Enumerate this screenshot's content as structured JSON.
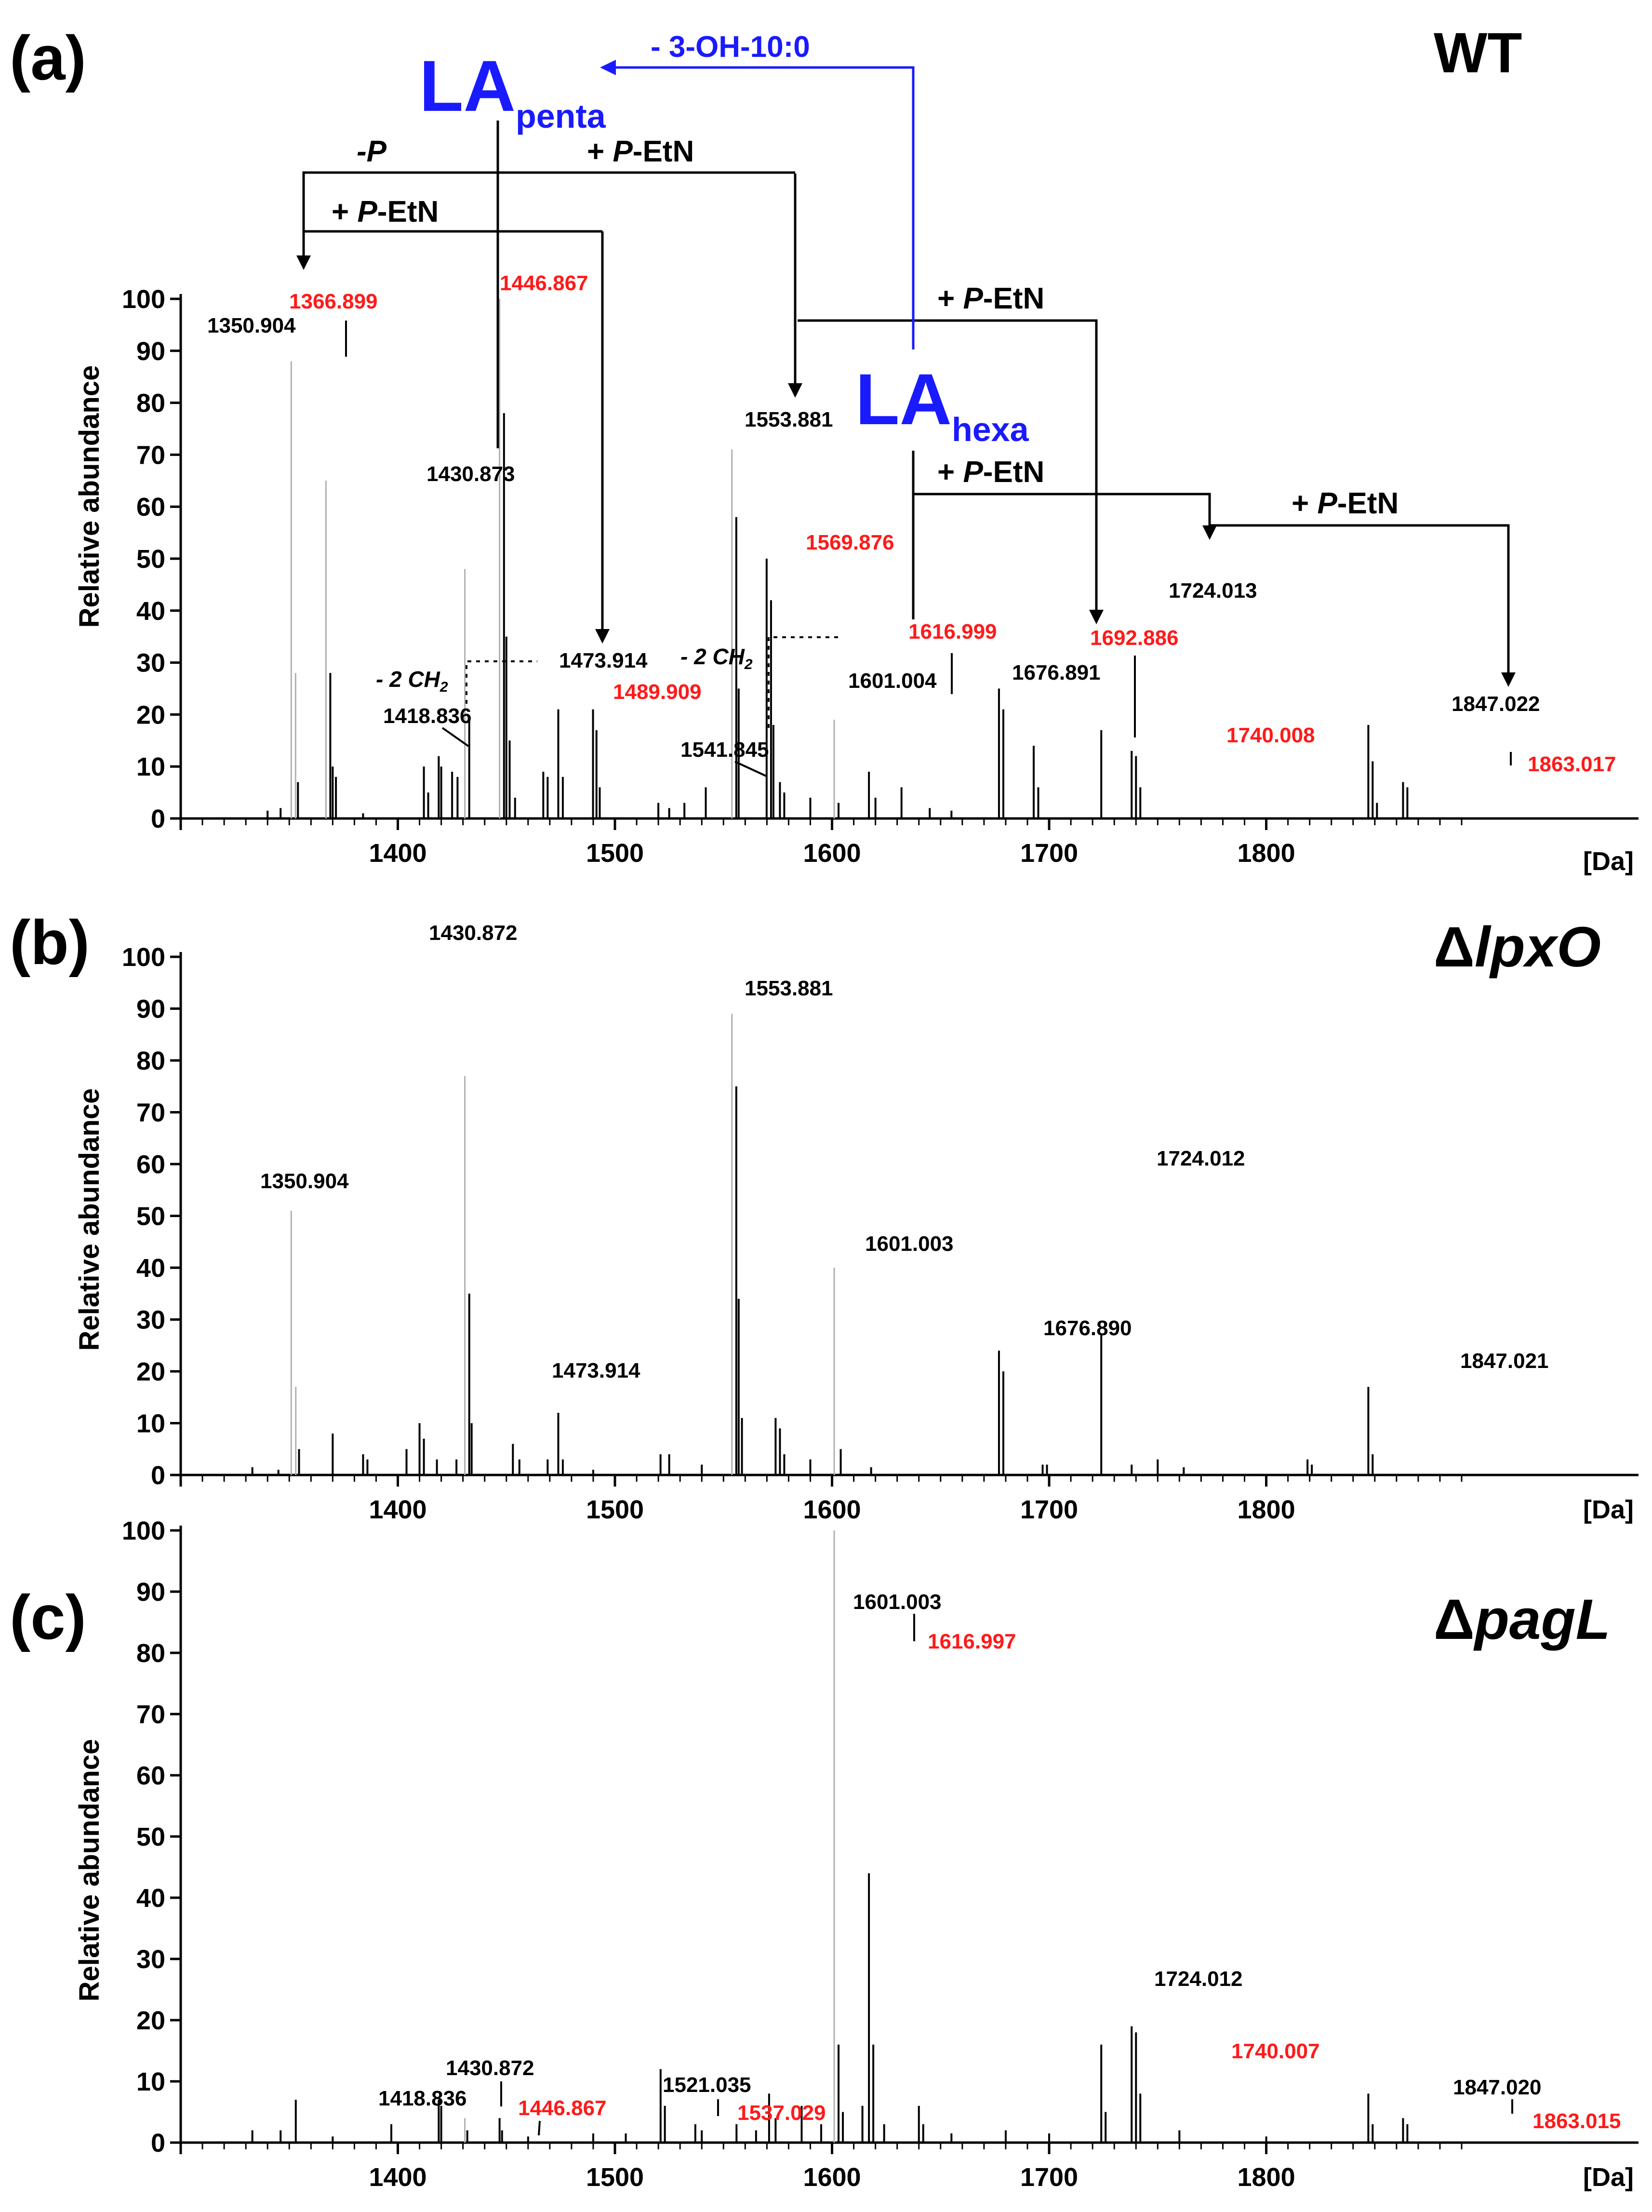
{
  "colors": {
    "black": "#000000",
    "red": "#ff1a1a",
    "blue": "#1a1aff",
    "gray": "#b0b0b0"
  },
  "chart_data": [
    {
      "type": "bar",
      "panel": "(a)",
      "title": "WT",
      "xlabel": "",
      "x_unit": "[Da]",
      "ylabel": "Relative abundance",
      "xlim": [
        1300,
        1890
      ],
      "ylim": [
        0,
        100
      ],
      "x_ticks": [
        "1400",
        "1500",
        "1600",
        "1700",
        "1800"
      ],
      "y_ticks": [
        "0",
        "10",
        "20",
        "30",
        "40",
        "50",
        "60",
        "70",
        "80",
        "90",
        "100"
      ],
      "peaks": [
        {
          "mz": 1350.904,
          "value": 88,
          "gray": true
        },
        {
          "mz": 1352.9,
          "value": 28,
          "gray": true
        },
        {
          "mz": 1354.0,
          "value": 7
        },
        {
          "mz": 1366.899,
          "value": 65,
          "gray": true
        },
        {
          "mz": 1368.9,
          "value": 28
        },
        {
          "mz": 1370.0,
          "value": 10
        },
        {
          "mz": 1371.5,
          "value": 8
        },
        {
          "mz": 1340.0,
          "value": 1.5
        },
        {
          "mz": 1346.0,
          "value": 2
        },
        {
          "mz": 1384.0,
          "value": 1
        },
        {
          "mz": 1412.0,
          "value": 10
        },
        {
          "mz": 1414.0,
          "value": 5
        },
        {
          "mz": 1418.836,
          "value": 12
        },
        {
          "mz": 1420.0,
          "value": 10
        },
        {
          "mz": 1425.0,
          "value": 9
        },
        {
          "mz": 1427.5,
          "value": 8
        },
        {
          "mz": 1430.873,
          "value": 48,
          "gray": true
        },
        {
          "mz": 1432.9,
          "value": 19
        },
        {
          "mz": 1446.867,
          "value": 100,
          "gray": true
        },
        {
          "mz": 1448.9,
          "value": 78
        },
        {
          "mz": 1450.0,
          "value": 35
        },
        {
          "mz": 1451.5,
          "value": 15
        },
        {
          "mz": 1454.0,
          "value": 4
        },
        {
          "mz": 1467.0,
          "value": 9
        },
        {
          "mz": 1469.0,
          "value": 8
        },
        {
          "mz": 1473.914,
          "value": 21
        },
        {
          "mz": 1476.0,
          "value": 8
        },
        {
          "mz": 1489.909,
          "value": 21
        },
        {
          "mz": 1491.5,
          "value": 17
        },
        {
          "mz": 1493.0,
          "value": 6
        },
        {
          "mz": 1520.0,
          "value": 3
        },
        {
          "mz": 1525.0,
          "value": 2
        },
        {
          "mz": 1532.0,
          "value": 3
        },
        {
          "mz": 1541.845,
          "value": 6
        },
        {
          "mz": 1553.881,
          "value": 71,
          "gray": true
        },
        {
          "mz": 1555.9,
          "value": 58
        },
        {
          "mz": 1557.0,
          "value": 25
        },
        {
          "mz": 1569.876,
          "value": 50
        },
        {
          "mz": 1571.9,
          "value": 42
        },
        {
          "mz": 1573.0,
          "value": 18
        },
        {
          "mz": 1576.0,
          "value": 7
        },
        {
          "mz": 1578.0,
          "value": 5
        },
        {
          "mz": 1590.0,
          "value": 4
        },
        {
          "mz": 1601.004,
          "value": 19,
          "gray": true
        },
        {
          "mz": 1603.0,
          "value": 3
        },
        {
          "mz": 1616.999,
          "value": 9
        },
        {
          "mz": 1620.0,
          "value": 4
        },
        {
          "mz": 1632.0,
          "value": 6
        },
        {
          "mz": 1645.0,
          "value": 2
        },
        {
          "mz": 1655.0,
          "value": 1.5
        },
        {
          "mz": 1676.891,
          "value": 25
        },
        {
          "mz": 1678.9,
          "value": 21
        },
        {
          "mz": 1692.886,
          "value": 14
        },
        {
          "mz": 1695.0,
          "value": 6
        },
        {
          "mz": 1724.013,
          "value": 17
        },
        {
          "mz": 1738.0,
          "value": 13
        },
        {
          "mz": 1740.008,
          "value": 12
        },
        {
          "mz": 1742.0,
          "value": 6
        },
        {
          "mz": 1847.022,
          "value": 18
        },
        {
          "mz": 1849.0,
          "value": 11
        },
        {
          "mz": 1851.0,
          "value": 3
        },
        {
          "mz": 1863.017,
          "value": 7
        },
        {
          "mz": 1865.0,
          "value": 6
        }
      ],
      "labels": [
        {
          "text": "1350.904",
          "red": false
        },
        {
          "text": "1366.899",
          "red": true
        },
        {
          "text": "1446.867",
          "red": true
        },
        {
          "text": "1430.873",
          "red": false
        },
        {
          "text": "1418.836",
          "red": false
        },
        {
          "text": "1473.914",
          "red": false
        },
        {
          "text": "1489.909",
          "red": true
        },
        {
          "text": "1541.845",
          "red": false
        },
        {
          "text": "1553.881",
          "red": false
        },
        {
          "text": "1569.876",
          "red": true
        },
        {
          "text": "1601.004",
          "red": false
        },
        {
          "text": "1616.999",
          "red": true
        },
        {
          "text": "1676.891",
          "red": false
        },
        {
          "text": "1692.886",
          "red": true
        },
        {
          "text": "1724.013",
          "red": false
        },
        {
          "text": "1740.008",
          "red": true
        },
        {
          "text": "1847.022",
          "red": false
        },
        {
          "text": "1863.017",
          "red": true
        }
      ],
      "annotations": {
        "la_penta": "LA",
        "la_penta_sub": "penta",
        "la_hexa": "LA",
        "la_hexa_sub": "hexa",
        "loss_acyl": "- 3-OH-10:0",
        "minus_p": "-P",
        "plus_petn_prefix": "+ ",
        "plus_petn_p": "P",
        "plus_petn_suffix": "-EtN",
        "minus_2ch2_prefix": "- 2 CH",
        "minus_2ch2_sub": "2"
      }
    },
    {
      "type": "bar",
      "panel": "(b)",
      "title_prefix": "Δ",
      "title": "lpxO",
      "x_unit": "[Da]",
      "ylabel": "Relative abundance",
      "xlim": [
        1300,
        1890
      ],
      "ylim": [
        0,
        100
      ],
      "x_ticks": [
        "1400",
        "1500",
        "1600",
        "1700",
        "1800"
      ],
      "y_ticks": [
        "0",
        "10",
        "20",
        "30",
        "40",
        "50",
        "60",
        "70",
        "80",
        "90",
        "100"
      ],
      "peaks": [
        {
          "mz": 1333.0,
          "value": 1.5
        },
        {
          "mz": 1345.0,
          "value": 1
        },
        {
          "mz": 1350.904,
          "value": 51,
          "gray": true
        },
        {
          "mz": 1353.0,
          "value": 17,
          "gray": true
        },
        {
          "mz": 1354.5,
          "value": 5
        },
        {
          "mz": 1370.0,
          "value": 8
        },
        {
          "mz": 1384.0,
          "value": 4
        },
        {
          "mz": 1386.0,
          "value": 3
        },
        {
          "mz": 1404.0,
          "value": 5
        },
        {
          "mz": 1410.0,
          "value": 10
        },
        {
          "mz": 1412.0,
          "value": 7
        },
        {
          "mz": 1418.0,
          "value": 3
        },
        {
          "mz": 1427.0,
          "value": 3
        },
        {
          "mz": 1430.872,
          "value": 77,
          "gray": true
        },
        {
          "mz": 1432.9,
          "value": 35
        },
        {
          "mz": 1434.0,
          "value": 10
        },
        {
          "mz": 1453.0,
          "value": 6
        },
        {
          "mz": 1456.0,
          "value": 3
        },
        {
          "mz": 1469.0,
          "value": 3
        },
        {
          "mz": 1473.914,
          "value": 12
        },
        {
          "mz": 1476.0,
          "value": 3
        },
        {
          "mz": 1490.0,
          "value": 1
        },
        {
          "mz": 1521.0,
          "value": 4
        },
        {
          "mz": 1525.0,
          "value": 4
        },
        {
          "mz": 1540.0,
          "value": 2
        },
        {
          "mz": 1553.881,
          "value": 89,
          "gray": true
        },
        {
          "mz": 1555.9,
          "value": 75
        },
        {
          "mz": 1557.0,
          "value": 34
        },
        {
          "mz": 1558.5,
          "value": 11
        },
        {
          "mz": 1574.0,
          "value": 11
        },
        {
          "mz": 1576.0,
          "value": 9
        },
        {
          "mz": 1578.0,
          "value": 4
        },
        {
          "mz": 1590.0,
          "value": 3
        },
        {
          "mz": 1601.003,
          "value": 40,
          "gray": true
        },
        {
          "mz": 1604.0,
          "value": 5
        },
        {
          "mz": 1618.0,
          "value": 1.5
        },
        {
          "mz": 1676.89,
          "value": 24
        },
        {
          "mz": 1678.9,
          "value": 20
        },
        {
          "mz": 1697.0,
          "value": 2
        },
        {
          "mz": 1699.0,
          "value": 2
        },
        {
          "mz": 1724.012,
          "value": 27
        },
        {
          "mz": 1738.0,
          "value": 2
        },
        {
          "mz": 1750.0,
          "value": 3
        },
        {
          "mz": 1762.0,
          "value": 1.5
        },
        {
          "mz": 1819.0,
          "value": 3
        },
        {
          "mz": 1821.0,
          "value": 2
        },
        {
          "mz": 1847.021,
          "value": 17
        },
        {
          "mz": 1849.0,
          "value": 4
        }
      ],
      "labels": [
        {
          "text": "1430.872",
          "red": false
        },
        {
          "text": "1553.881",
          "red": false
        },
        {
          "text": "1350.904",
          "red": false
        },
        {
          "text": "1724.012",
          "red": false
        },
        {
          "text": "1601.003",
          "red": false
        },
        {
          "text": "1676.890",
          "red": false
        },
        {
          "text": "1473.914",
          "red": false
        },
        {
          "text": "1847.021",
          "red": false
        }
      ]
    },
    {
      "type": "bar",
      "panel": "(c)",
      "title_prefix": "Δ",
      "title": "pagL",
      "x_unit": "[Da]",
      "ylabel": "Relative abundance",
      "xlim": [
        1300,
        1890
      ],
      "ylim": [
        0,
        100
      ],
      "x_ticks": [
        "1400",
        "1500",
        "1600",
        "1700",
        "1800"
      ],
      "y_ticks": [
        "0",
        "10",
        "20",
        "30",
        "40",
        "50",
        "60",
        "70",
        "80",
        "90",
        "100"
      ],
      "peaks": [
        {
          "mz": 1333.0,
          "value": 2
        },
        {
          "mz": 1346.0,
          "value": 2
        },
        {
          "mz": 1353.0,
          "value": 7
        },
        {
          "mz": 1370.0,
          "value": 1
        },
        {
          "mz": 1397.0,
          "value": 3
        },
        {
          "mz": 1418.836,
          "value": 7
        },
        {
          "mz": 1420.0,
          "value": 6
        },
        {
          "mz": 1430.872,
          "value": 4,
          "gray": true
        },
        {
          "mz": 1432.0,
          "value": 2
        },
        {
          "mz": 1446.867,
          "value": 4
        },
        {
          "mz": 1448.0,
          "value": 2
        },
        {
          "mz": 1460.0,
          "value": 1
        },
        {
          "mz": 1490.0,
          "value": 1.5
        },
        {
          "mz": 1505.0,
          "value": 1.5
        },
        {
          "mz": 1521.035,
          "value": 12
        },
        {
          "mz": 1523.0,
          "value": 6
        },
        {
          "mz": 1537.029,
          "value": 3
        },
        {
          "mz": 1540.0,
          "value": 2
        },
        {
          "mz": 1556.0,
          "value": 3
        },
        {
          "mz": 1565.0,
          "value": 2
        },
        {
          "mz": 1571.0,
          "value": 8
        },
        {
          "mz": 1574.0,
          "value": 4
        },
        {
          "mz": 1586.0,
          "value": 6
        },
        {
          "mz": 1595.0,
          "value": 3
        },
        {
          "mz": 1601.003,
          "value": 100,
          "gray": true
        },
        {
          "mz": 1603.0,
          "value": 16
        },
        {
          "mz": 1605.0,
          "value": 5
        },
        {
          "mz": 1614.0,
          "value": 6
        },
        {
          "mz": 1616.997,
          "value": 44
        },
        {
          "mz": 1619.0,
          "value": 16
        },
        {
          "mz": 1624.0,
          "value": 3
        },
        {
          "mz": 1640.0,
          "value": 6
        },
        {
          "mz": 1642.0,
          "value": 3
        },
        {
          "mz": 1655.0,
          "value": 1.5
        },
        {
          "mz": 1680.0,
          "value": 2
        },
        {
          "mz": 1700.0,
          "value": 1.5
        },
        {
          "mz": 1724.012,
          "value": 16
        },
        {
          "mz": 1726.0,
          "value": 5
        },
        {
          "mz": 1738.0,
          "value": 19
        },
        {
          "mz": 1740.007,
          "value": 18
        },
        {
          "mz": 1742.0,
          "value": 8
        },
        {
          "mz": 1760.0,
          "value": 2
        },
        {
          "mz": 1800.0,
          "value": 1
        },
        {
          "mz": 1847.02,
          "value": 8
        },
        {
          "mz": 1849.0,
          "value": 3
        },
        {
          "mz": 1863.015,
          "value": 4
        },
        {
          "mz": 1865.0,
          "value": 3
        }
      ],
      "labels": [
        {
          "text": "1601.003",
          "red": false
        },
        {
          "text": "1616.997",
          "red": true
        },
        {
          "text": "1724.012",
          "red": false
        },
        {
          "text": "1740.007",
          "red": true
        },
        {
          "text": "1430.872",
          "red": false
        },
        {
          "text": "1418.836",
          "red": false
        },
        {
          "text": "1446.867",
          "red": true
        },
        {
          "text": "1521.035",
          "red": false
        },
        {
          "text": "1537.029",
          "red": true
        },
        {
          "text": "1847.020",
          "red": false
        },
        {
          "text": "1863.015",
          "red": true
        }
      ]
    }
  ]
}
